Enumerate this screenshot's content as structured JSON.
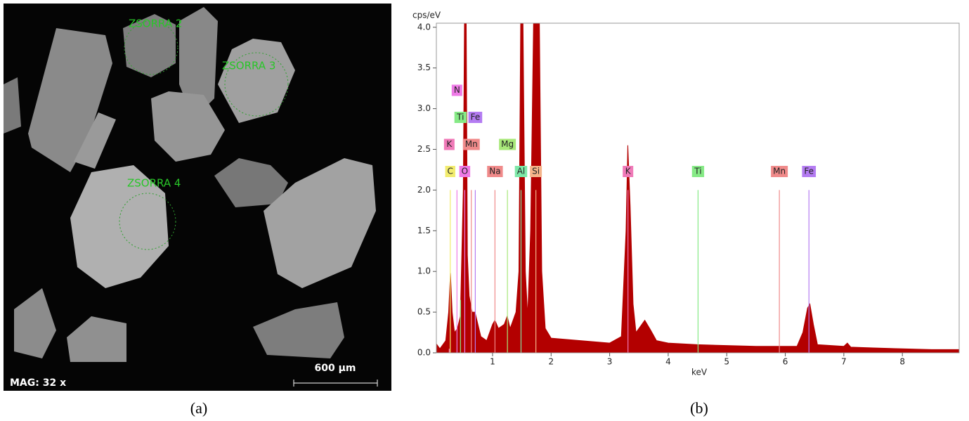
{
  "image_panel": {
    "labels": [
      "ZSORRA 2",
      "ZSORRA 3",
      "ZSORRA 4"
    ],
    "magnification": "MAG: 32 x",
    "scale_bar": "600 µm",
    "caption": "(a)"
  },
  "chart_data": {
    "type": "area",
    "caption": "(b)",
    "xlabel": "keV",
    "ylabel": "cps/eV",
    "color": "#b30000",
    "x": [
      0.05,
      0.1,
      0.15,
      0.2,
      0.25,
      0.28,
      0.31,
      0.35,
      0.4,
      0.45,
      0.5,
      0.52,
      0.55,
      0.57,
      0.6,
      0.65,
      0.7,
      0.75,
      0.8,
      0.9,
      1.0,
      1.04,
      1.1,
      1.2,
      1.25,
      1.3,
      1.4,
      1.45,
      1.48,
      1.52,
      1.56,
      1.6,
      1.65,
      1.7,
      1.8,
      1.84,
      1.9,
      2.0,
      2.5,
      3.0,
      3.2,
      3.28,
      3.31,
      3.35,
      3.4,
      3.45,
      3.5,
      3.6,
      3.7,
      3.8,
      4.0,
      4.5,
      5.0,
      5.5,
      5.9,
      6.2,
      6.3,
      6.38,
      6.42,
      6.48,
      6.55,
      7.0,
      7.06,
      7.12,
      7.5,
      8.0,
      8.5,
      8.96
    ],
    "values": [
      0.1,
      0.05,
      0.1,
      0.15,
      0.5,
      0.98,
      0.5,
      0.25,
      0.3,
      0.45,
      2.0,
      4.05,
      4.05,
      1.2,
      0.7,
      0.5,
      0.5,
      0.35,
      0.2,
      0.15,
      0.35,
      0.4,
      0.3,
      0.35,
      0.45,
      0.3,
      0.5,
      1.0,
      4.05,
      4.05,
      1.0,
      0.45,
      1.5,
      4.05,
      4.05,
      1.0,
      0.3,
      0.18,
      0.15,
      0.12,
      0.2,
      1.5,
      2.55,
      1.8,
      0.6,
      0.25,
      0.3,
      0.4,
      0.28,
      0.15,
      0.12,
      0.1,
      0.09,
      0.08,
      0.08,
      0.08,
      0.25,
      0.55,
      0.6,
      0.35,
      0.1,
      0.08,
      0.12,
      0.07,
      0.06,
      0.05,
      0.04,
      0.04
    ],
    "xlim": [
      0.04,
      8.97
    ],
    "ylim": [
      0,
      4.05
    ],
    "xticks": [
      1,
      2,
      3,
      4,
      5,
      6,
      7,
      8
    ],
    "yticks": [
      {
        "value": 0,
        "label": "0.0"
      },
      0.5,
      {
        "value": 1,
        "label": "1.0"
      },
      1.5,
      {
        "value": 2,
        "label": "2.0"
      },
      2.5,
      {
        "value": 3,
        "label": "3.0"
      },
      3.5,
      {
        "value": 4,
        "label": "4.0"
      }
    ],
    "markers": [
      {
        "label": "C",
        "x": 0.277,
        "color": "#f2ec6e",
        "height": 2.0
      },
      {
        "label": "O",
        "x": 0.525,
        "color": "#ee7ae6",
        "height": 2.0
      },
      {
        "label": "Na",
        "x": 1.041,
        "color": "#f08a8a",
        "height": 2.0
      },
      {
        "label": "Al",
        "x": 1.486,
        "color": "#7ee8a8",
        "height": 2.0
      },
      {
        "label": "Si",
        "x": 1.74,
        "color": "#f5b48a",
        "height": 2.0
      },
      {
        "label": "K",
        "x": 3.313,
        "color": "#f07ab8",
        "height": 2.0
      },
      {
        "label": "Ti",
        "x": 4.51,
        "color": "#86ea86",
        "height": 2.0
      },
      {
        "label": "Mn",
        "x": 5.899,
        "color": "#f08a8a",
        "height": 2.0
      },
      {
        "label": "Fe",
        "x": 6.404,
        "color": "#b47cf2",
        "height": 2.0
      },
      {
        "label": "K",
        "x": 0.26,
        "color": "#f07ab8",
        "height": 0.05
      },
      {
        "label": "Mn",
        "x": 0.637,
        "color": "#f08a8a",
        "height": 2.0
      },
      {
        "label": "Mg",
        "x": 1.254,
        "color": "#a8e87a",
        "height": 2.0
      },
      {
        "label": "Ti",
        "x": 0.452,
        "color": "#86ea86",
        "height": 0.65
      },
      {
        "label": "Fe",
        "x": 0.705,
        "color": "#b47cf2",
        "height": 2.0
      },
      {
        "label": "N",
        "x": 0.392,
        "color": "#ee7ae6",
        "height": 2.0
      }
    ]
  }
}
